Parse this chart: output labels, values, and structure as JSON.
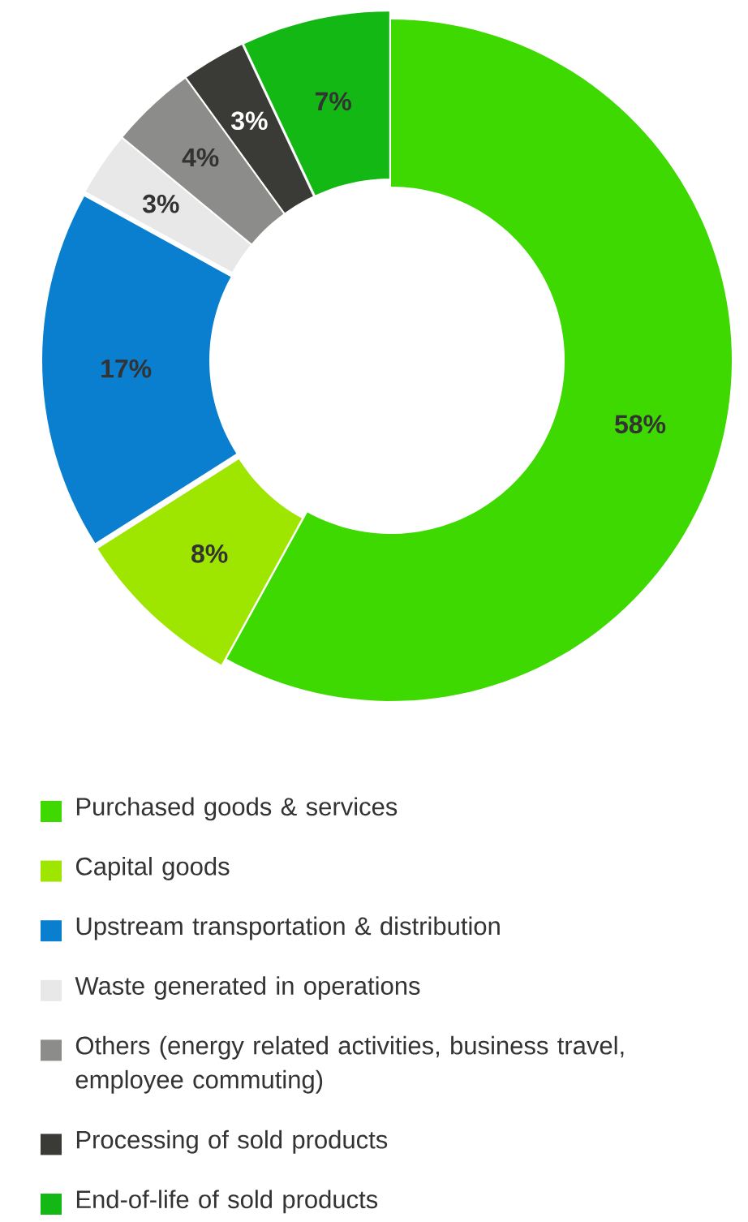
{
  "chart_data": {
    "type": "donut",
    "categories": [
      "Purchased goods & services",
      "Capital goods",
      "Upstream transportation & distribution",
      "Waste generated in operations",
      "Others (energy related activities, business travel, employee commuting)",
      "Processing of sold products",
      "End-of-life of sold products"
    ],
    "values": [
      58,
      8,
      17,
      3,
      4,
      3,
      7
    ],
    "value_labels": [
      "58%",
      "8%",
      "17%",
      "3%",
      "4%",
      "3%",
      "7%"
    ],
    "colors": [
      "#3dd900",
      "#9ee600",
      "#0a7fcf",
      "#e8e8e8",
      "#8c8c8a",
      "#3a3a36",
      "#14b814"
    ],
    "legend": "bottom"
  }
}
